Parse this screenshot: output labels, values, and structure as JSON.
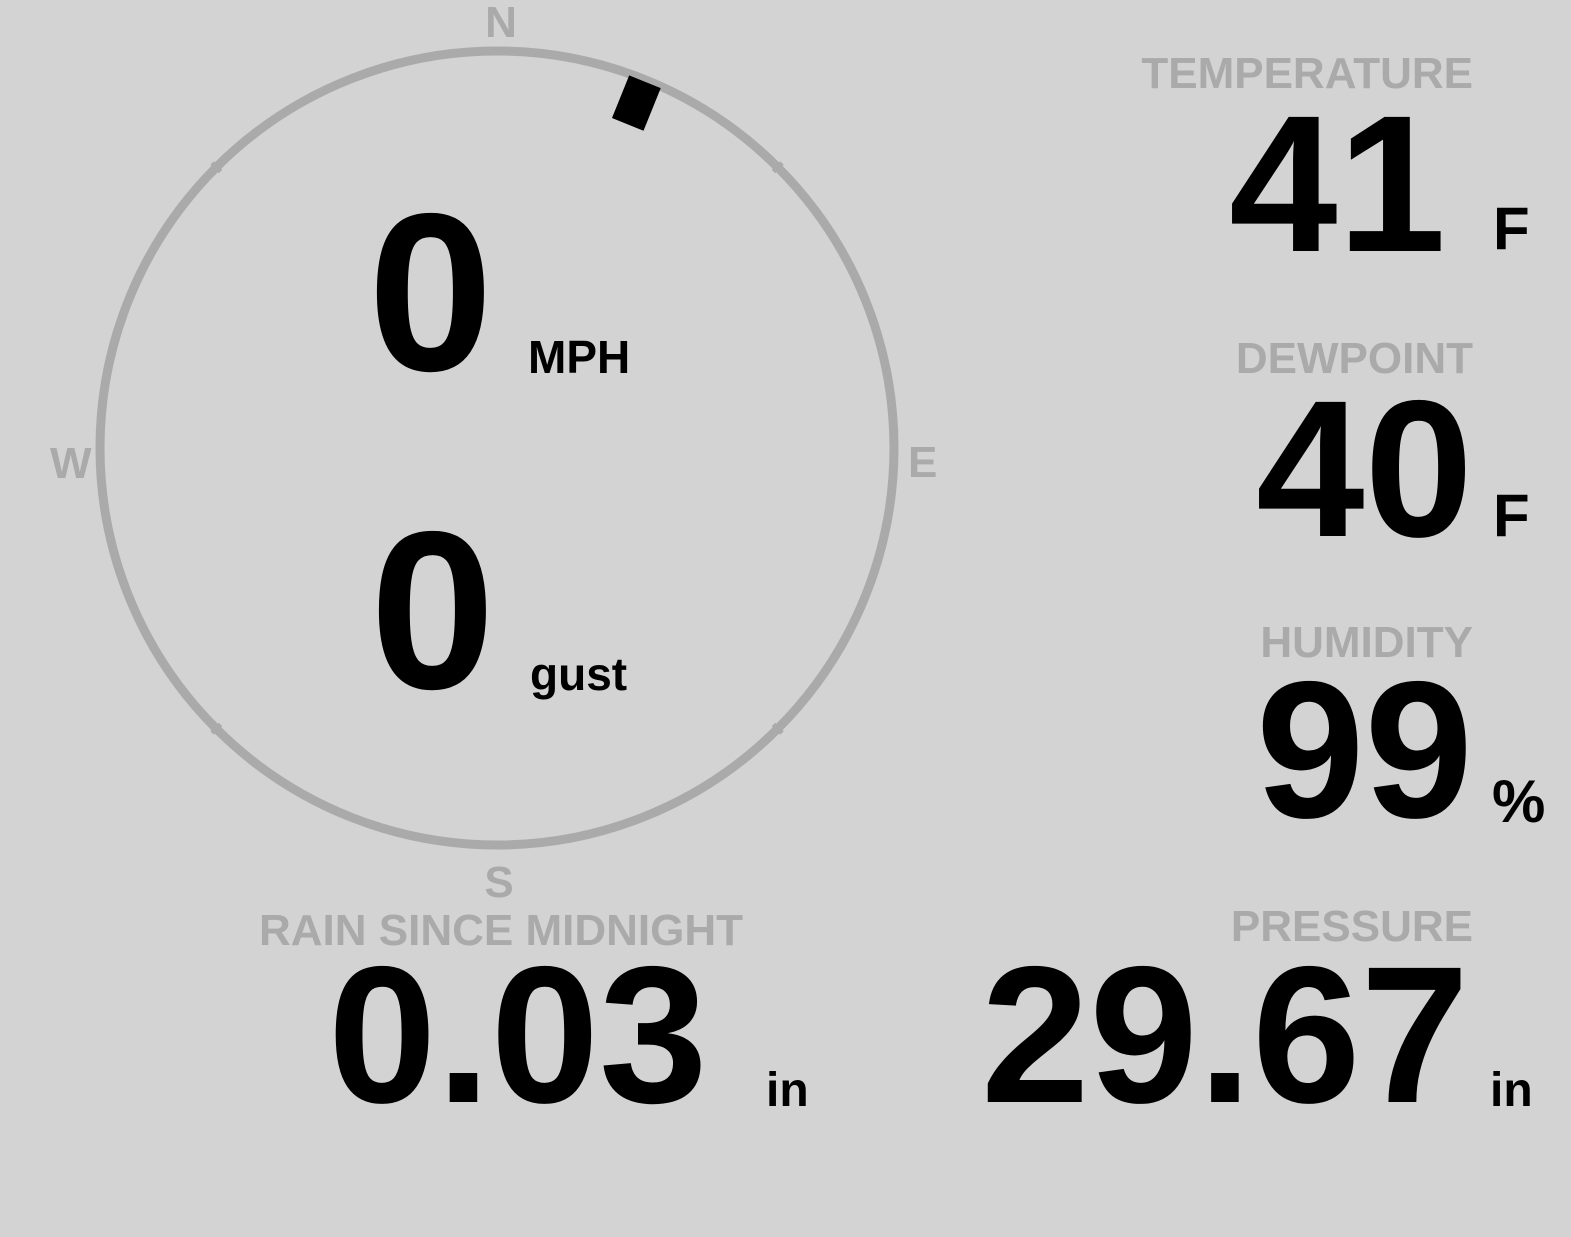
{
  "colors": {
    "background": "#d3d3d3",
    "label": "#aaaaaa",
    "value": "#000000",
    "ring": "#aaaaaa",
    "needle": "#000000"
  },
  "wind": {
    "compass": {
      "n": "N",
      "s": "S",
      "e": "E",
      "w": "W"
    },
    "direction_degrees": 22,
    "speed": "0",
    "speed_unit": "MPH",
    "gust": "0",
    "gust_unit": "gust"
  },
  "temperature": {
    "label": "TEMPERATURE",
    "value": "41",
    "unit": "F"
  },
  "dewpoint": {
    "label": "DEWPOINT",
    "value": "40",
    "unit": "F"
  },
  "humidity": {
    "label": "HUMIDITY",
    "value": "99",
    "unit": "%"
  },
  "pressure": {
    "label": "PRESSURE",
    "value": "29.67",
    "unit": "in"
  },
  "rain": {
    "label": "RAIN SINCE MIDNIGHT",
    "value": "0.03",
    "unit": "in"
  }
}
